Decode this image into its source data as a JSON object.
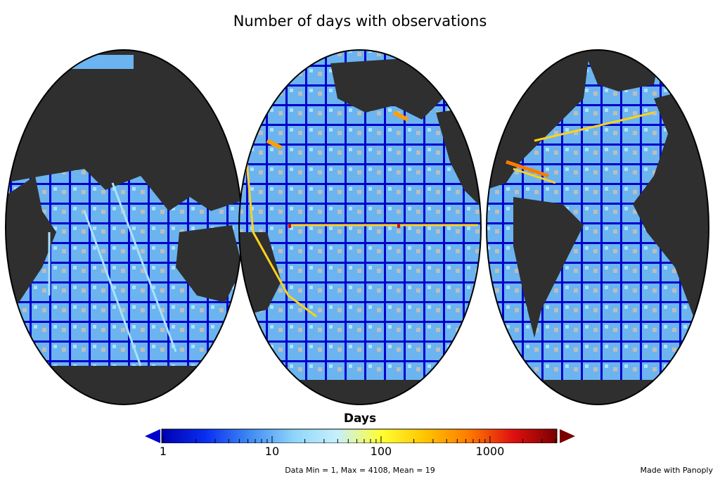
{
  "title": "Number of days with observations",
  "colorbar": {
    "label": "Days",
    "scale": "log",
    "range": [
      1,
      4108
    ],
    "ticks": [
      {
        "value": 1,
        "label": "1"
      },
      {
        "value": 10,
        "label": "10"
      },
      {
        "value": 100,
        "label": "100"
      },
      {
        "value": 1000,
        "label": "1000"
      }
    ],
    "colors": [
      "#0000b0",
      "#0a2ef0",
      "#3f8af4",
      "#8ed4fa",
      "#c6f0fc",
      "#ffff33",
      "#ffc400",
      "#ff7a00",
      "#e01010",
      "#7a0000"
    ],
    "underflow_color": "#0000cc",
    "overflow_color": "#7a0000"
  },
  "stats": "Data Min = 1, Max = 4108, Mean = 19",
  "credit": "Made with Panoply",
  "map_colors": {
    "land": "#2f2f2f",
    "no_data": "#bdbdbd",
    "ocean_base": "#62aaee",
    "track_low": "#0000cc",
    "track_mid": "#a9e2fb",
    "track_high": "#ffd21a",
    "hotspot": "#d01010"
  }
}
